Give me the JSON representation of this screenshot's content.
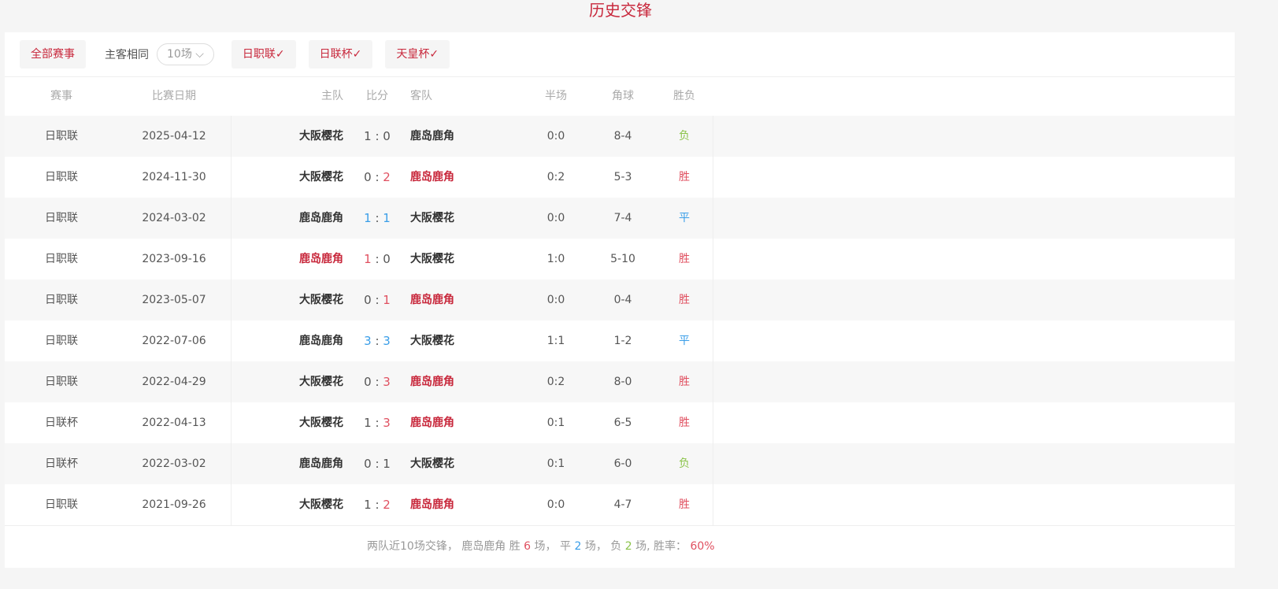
{
  "title": "历史交锋",
  "filters": {
    "all": "全部赛事",
    "same_home_away": "主客相同",
    "count": "10场",
    "leagues": [
      "日职联",
      "日联杯",
      "天皇杯"
    ]
  },
  "columns": {
    "comp": "赛事",
    "date": "比赛日期",
    "home": "主队",
    "score": "比分",
    "away": "客队",
    "half": "半场",
    "corner": "角球",
    "result": "胜负"
  },
  "colors": {
    "accent": "#c8283c",
    "win": "#e05060",
    "draw": "#3a9ee8",
    "loss": "#8bc34a"
  },
  "rows": [
    {
      "comp": "日职联",
      "date": "2025-04-12",
      "home": "大阪樱花",
      "hs": "1",
      "as": "0",
      "away": "鹿岛鹿角",
      "half": "0:0",
      "corner": "8-4",
      "result": "负",
      "hl": "",
      "sc": ""
    },
    {
      "comp": "日职联",
      "date": "2024-11-30",
      "home": "大阪樱花",
      "hs": "0",
      "as": "2",
      "away": "鹿岛鹿角",
      "half": "0:2",
      "corner": "5-3",
      "result": "胜",
      "hl": "away",
      "sc": "away"
    },
    {
      "comp": "日职联",
      "date": "2024-03-02",
      "home": "鹿岛鹿角",
      "hs": "1",
      "as": "1",
      "away": "大阪樱花",
      "half": "0:0",
      "corner": "7-4",
      "result": "平",
      "hl": "",
      "sc": "both"
    },
    {
      "comp": "日职联",
      "date": "2023-09-16",
      "home": "鹿岛鹿角",
      "hs": "1",
      "as": "0",
      "away": "大阪樱花",
      "half": "1:0",
      "corner": "5-10",
      "result": "胜",
      "hl": "home",
      "sc": "home"
    },
    {
      "comp": "日职联",
      "date": "2023-05-07",
      "home": "大阪樱花",
      "hs": "0",
      "as": "1",
      "away": "鹿岛鹿角",
      "half": "0:0",
      "corner": "0-4",
      "result": "胜",
      "hl": "away",
      "sc": "away"
    },
    {
      "comp": "日职联",
      "date": "2022-07-06",
      "home": "鹿岛鹿角",
      "hs": "3",
      "as": "3",
      "away": "大阪樱花",
      "half": "1:1",
      "corner": "1-2",
      "result": "平",
      "hl": "",
      "sc": "both"
    },
    {
      "comp": "日职联",
      "date": "2022-04-29",
      "home": "大阪樱花",
      "hs": "0",
      "as": "3",
      "away": "鹿岛鹿角",
      "half": "0:2",
      "corner": "8-0",
      "result": "胜",
      "hl": "away",
      "sc": "away"
    },
    {
      "comp": "日联杯",
      "date": "2022-04-13",
      "home": "大阪樱花",
      "hs": "1",
      "as": "3",
      "away": "鹿岛鹿角",
      "half": "0:1",
      "corner": "6-5",
      "result": "胜",
      "hl": "away",
      "sc": "away"
    },
    {
      "comp": "日联杯",
      "date": "2022-03-02",
      "home": "鹿岛鹿角",
      "hs": "0",
      "as": "1",
      "away": "大阪樱花",
      "half": "0:1",
      "corner": "6-0",
      "result": "负",
      "hl": "",
      "sc": ""
    },
    {
      "comp": "日职联",
      "date": "2021-09-26",
      "home": "大阪樱花",
      "hs": "1",
      "as": "2",
      "away": "鹿岛鹿角",
      "half": "0:0",
      "corner": "4-7",
      "result": "胜",
      "hl": "away",
      "sc": "away"
    }
  ],
  "summary": {
    "prefix": "两队近10场交锋， 鹿岛鹿角 胜 ",
    "wins": "6",
    "t1": " 场， 平 ",
    "draws": "2",
    "t2": " 场， 负 ",
    "losses": "2",
    "t3": " 场, 胜率： ",
    "rate": "60%"
  }
}
